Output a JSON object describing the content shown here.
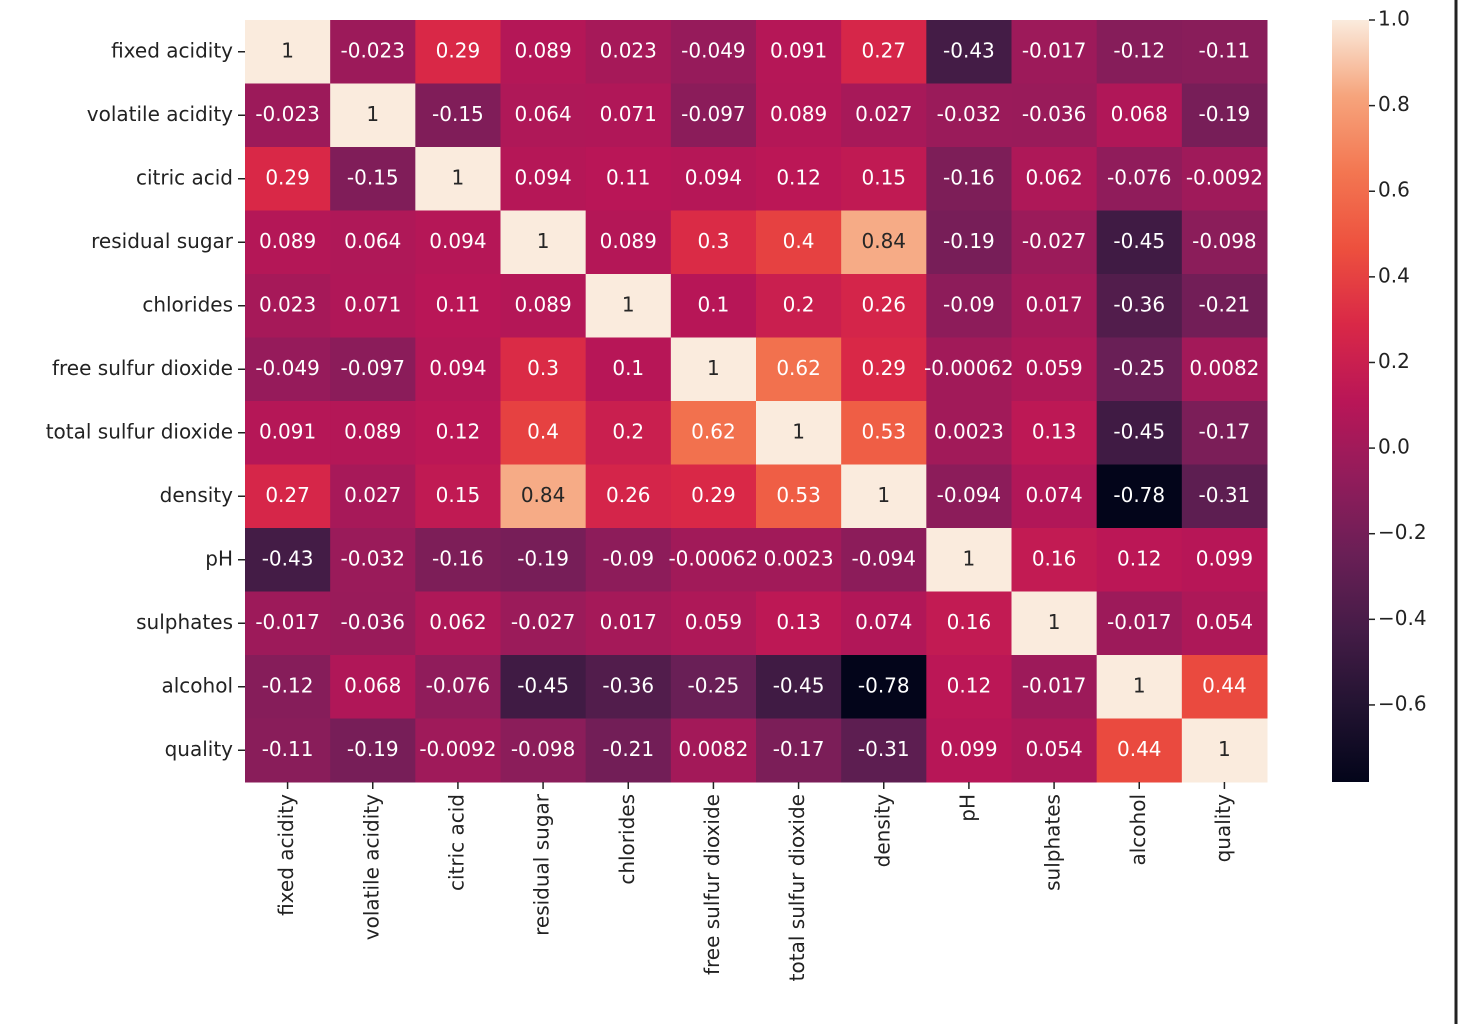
{
  "chart_data": {
    "type": "heatmap",
    "categories": [
      "fixed acidity",
      "volatile acidity",
      "citric acid",
      "residual sugar",
      "chlorides",
      "free sulfur dioxide",
      "total sulfur dioxide",
      "density",
      "pH",
      "sulphates",
      "alcohol",
      "quality"
    ],
    "values": [
      [
        1,
        -0.023,
        0.29,
        0.089,
        0.023,
        -0.049,
        0.091,
        0.27,
        -0.43,
        -0.017,
        -0.12,
        -0.11
      ],
      [
        -0.023,
        1,
        -0.15,
        0.064,
        0.071,
        -0.097,
        0.089,
        0.027,
        -0.032,
        -0.036,
        0.068,
        -0.19
      ],
      [
        0.29,
        -0.15,
        1,
        0.094,
        0.11,
        0.094,
        0.12,
        0.15,
        -0.16,
        0.062,
        -0.076,
        -0.0092
      ],
      [
        0.089,
        0.064,
        0.094,
        1,
        0.089,
        0.3,
        0.4,
        0.84,
        -0.19,
        -0.027,
        -0.45,
        -0.098
      ],
      [
        0.023,
        0.071,
        0.11,
        0.089,
        1,
        0.1,
        0.2,
        0.26,
        -0.09,
        0.017,
        -0.36,
        -0.21
      ],
      [
        -0.049,
        -0.097,
        0.094,
        0.3,
        0.1,
        1,
        0.62,
        0.29,
        -0.00062,
        0.059,
        -0.25,
        0.0082
      ],
      [
        0.091,
        0.089,
        0.12,
        0.4,
        0.2,
        0.62,
        1,
        0.53,
        0.0023,
        0.13,
        -0.45,
        -0.17
      ],
      [
        0.27,
        0.027,
        0.15,
        0.84,
        0.26,
        0.29,
        0.53,
        1,
        -0.094,
        0.074,
        -0.78,
        -0.31
      ],
      [
        -0.43,
        -0.032,
        -0.16,
        -0.19,
        -0.09,
        -0.00062,
        0.0023,
        -0.094,
        1,
        0.16,
        0.12,
        0.099
      ],
      [
        -0.017,
        -0.036,
        0.062,
        -0.027,
        0.017,
        0.059,
        0.13,
        0.074,
        0.16,
        1,
        -0.017,
        0.054
      ],
      [
        -0.12,
        0.068,
        -0.076,
        -0.45,
        -0.36,
        -0.25,
        -0.45,
        -0.78,
        0.12,
        -0.017,
        1,
        0.44
      ],
      [
        -0.11,
        -0.19,
        -0.0092,
        -0.098,
        -0.21,
        0.0082,
        -0.17,
        -0.31,
        0.099,
        0.054,
        0.44,
        1
      ]
    ],
    "zlim": [
      -0.78,
      1
    ],
    "zticks": [
      {
        "value": 1,
        "label": "1.0"
      },
      0.8,
      0.6,
      0.4,
      0.2,
      {
        "value": 0,
        "label": "0.0"
      },
      {
        "value": -0.2,
        "label": "−0.2"
      },
      {
        "value": -0.4,
        "label": "−0.4"
      },
      {
        "value": -0.6,
        "label": "−0.6"
      }
    ],
    "colormap": [
      "#03051a",
      "#221331",
      "#451c47",
      "#6a1f56",
      "#921c5b",
      "#b91657",
      "#d92847",
      "#ed503e",
      "#f37651",
      "#f6a47c",
      "#faebdd"
    ]
  }
}
